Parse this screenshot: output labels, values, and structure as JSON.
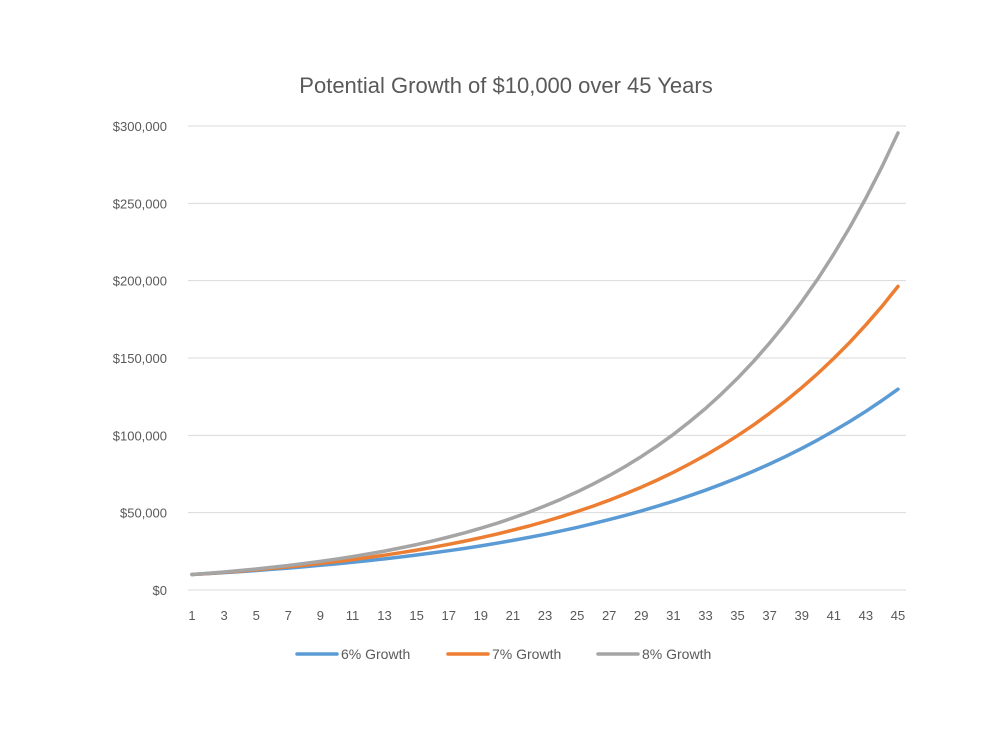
{
  "chart_data": {
    "type": "line",
    "title": "Potential Growth of $10,000 over 45 Years",
    "xlabel": "",
    "ylabel": "",
    "x": [
      1,
      2,
      3,
      4,
      5,
      6,
      7,
      8,
      9,
      10,
      11,
      12,
      13,
      14,
      15,
      16,
      17,
      18,
      19,
      20,
      21,
      22,
      23,
      24,
      25,
      26,
      27,
      28,
      29,
      30,
      31,
      32,
      33,
      34,
      35,
      36,
      37,
      38,
      39,
      40,
      41,
      42,
      43,
      44,
      45
    ],
    "x_tick_labels": [
      "1",
      "3",
      "5",
      "7",
      "9",
      "11",
      "13",
      "15",
      "17",
      "19",
      "21",
      "23",
      "25",
      "27",
      "29",
      "31",
      "33",
      "35",
      "37",
      "39",
      "41",
      "43",
      "45"
    ],
    "ylim": [
      0,
      300000
    ],
    "y_ticks": [
      0,
      50000,
      100000,
      150000,
      200000,
      250000,
      300000
    ],
    "y_tick_labels": [
      "$0",
      "$50,000",
      "$100,000",
      "$150,000",
      "$200,000",
      "$250,000",
      "$300,000"
    ],
    "grid": true,
    "legend_position": "bottom",
    "series": [
      {
        "name": "6% Growth",
        "color": "#5b9bd5",
        "values": [
          10000,
          10600,
          11236,
          11910,
          12625,
          13382,
          14185,
          15036,
          15938,
          16895,
          17908,
          18983,
          20122,
          21329,
          22609,
          23966,
          25404,
          26928,
          28543,
          30256,
          32071,
          33996,
          36035,
          38197,
          40489,
          42919,
          45494,
          48223,
          51117,
          54184,
          57435,
          60881,
          64534,
          68406,
          72510,
          76861,
          81473,
          86361,
          91543,
          97035,
          102857,
          109029,
          115570,
          122504,
          129855
        ]
      },
      {
        "name": "7% Growth",
        "color": "#ed7d31",
        "values": [
          10000,
          10700,
          11449,
          12250,
          13108,
          14026,
          15007,
          16058,
          17182,
          18385,
          19672,
          21049,
          22522,
          24098,
          25785,
          27590,
          29522,
          31588,
          33799,
          36165,
          38697,
          41406,
          44304,
          47405,
          50724,
          54274,
          58074,
          62139,
          66488,
          71143,
          76123,
          81451,
          87153,
          93253,
          99781,
          106766,
          114239,
          122236,
          130793,
          139948,
          149745,
          160227,
          171443,
          183444,
          196285
        ]
      },
      {
        "name": "8% Growth",
        "color": "#a5a5a5",
        "values": [
          10000,
          10800,
          11664,
          12597,
          13605,
          14693,
          15869,
          17138,
          18509,
          19990,
          21589,
          23316,
          25182,
          27196,
          29372,
          31722,
          34259,
          37000,
          39960,
          43157,
          46610,
          50338,
          54365,
          58715,
          63412,
          68485,
          73964,
          79881,
          86271,
          93173,
          100627,
          108677,
          117371,
          126760,
          136901,
          147853,
          159682,
          172456,
          186253,
          201153,
          217245,
          234625,
          253395,
          273666,
          295560
        ]
      }
    ]
  }
}
